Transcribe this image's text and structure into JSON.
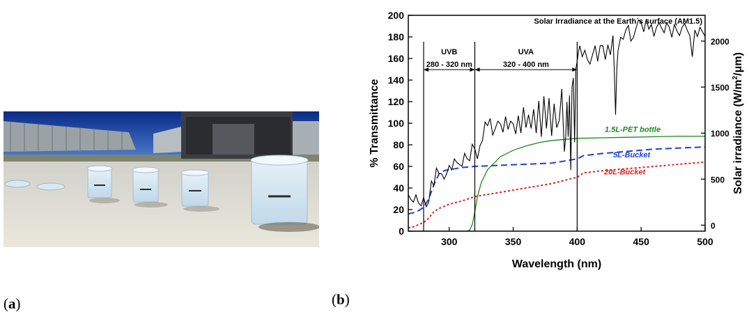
{
  "panels": {
    "a_label": "a",
    "b_label": "b"
  },
  "chart_data": {
    "type": "line",
    "title": "Solar Irradiance at the Earth´s surface (AM1.5)",
    "xlabel": "Wavelength (nm)",
    "ylabel": "% Transmittance",
    "y2label": "Solar irradiance (W/m²/μm)",
    "xlim": [
      268,
      500
    ],
    "ylim": [
      0,
      200
    ],
    "y2lim": [
      -65,
      2280
    ],
    "x_ticks": [
      300,
      350,
      400,
      450,
      500
    ],
    "y_ticks": [
      0,
      20,
      40,
      60,
      80,
      100,
      120,
      140,
      160,
      180,
      200
    ],
    "y2_ticks": [
      0,
      500,
      1000,
      1500,
      2000
    ],
    "grid": false,
    "vertical_lines": [
      280,
      320,
      400
    ],
    "band_labels": [
      {
        "name": "UVB",
        "range": "280 - 320 nm"
      },
      {
        "name": "UVA",
        "range": "320 - 400 nm"
      }
    ],
    "series": [
      {
        "name": "1.5L-PET bottle",
        "axis": "left",
        "color": "#1a8a1a",
        "dash": "solid",
        "x": [
          268,
          300,
          314,
          316,
          318,
          320,
          322,
          325,
          330,
          340,
          350,
          360,
          370,
          380,
          390,
          400,
          420,
          440,
          460,
          480,
          500
        ],
        "values": [
          0,
          0,
          0,
          1,
          6,
          18,
          32,
          45,
          57,
          69,
          75,
          79,
          82,
          84,
          85,
          86,
          86.5,
          87,
          87.5,
          88,
          88
        ]
      },
      {
        "name": "5L-Bucket",
        "axis": "left",
        "color": "#1f3fcf",
        "dash": "dashed",
        "x": [
          268,
          272,
          276,
          280,
          284,
          288,
          292,
          296,
          300,
          310,
          320,
          340,
          360,
          380,
          390,
          395,
          400,
          405,
          420,
          440,
          460,
          480,
          500
        ],
        "values": [
          16,
          17,
          19,
          22,
          30,
          43,
          53,
          56,
          57,
          59,
          60,
          61,
          62,
          63,
          65,
          66,
          67,
          70,
          72,
          74,
          76,
          77,
          78
        ]
      },
      {
        "name": "20L-Bucket",
        "axis": "left",
        "color": "#e02020",
        "dash": "dotted",
        "x": [
          268,
          272,
          276,
          280,
          284,
          288,
          292,
          296,
          300,
          310,
          320,
          340,
          360,
          380,
          390,
          400,
          405,
          420,
          440,
          460,
          480,
          500
        ],
        "values": [
          3,
          4,
          6,
          8,
          12,
          18,
          21,
          23,
          25,
          28,
          32,
          36,
          40,
          44,
          47,
          50,
          54,
          56,
          58,
          60,
          62,
          64
        ]
      },
      {
        "name": "Solar Irradiance at the Earth´s surface (AM1.5)",
        "axis": "right",
        "color": "#000000",
        "dash": "solid",
        "x": [
          268,
          270,
          272,
          274,
          276,
          278,
          280,
          282,
          284,
          286,
          288,
          290,
          292,
          294,
          296,
          298,
          300,
          302,
          304,
          306,
          308,
          310,
          312,
          314,
          316,
          318,
          320,
          322,
          324,
          326,
          328,
          330,
          332,
          334,
          336,
          338,
          340,
          342,
          344,
          346,
          348,
          350,
          352,
          354,
          356,
          358,
          360,
          362,
          364,
          366,
          368,
          370,
          372,
          374,
          376,
          378,
          380,
          382,
          384,
          386,
          388,
          390,
          391,
          392,
          393,
          394,
          395,
          396,
          397,
          398,
          399,
          400,
          401,
          402,
          404,
          406,
          408,
          410,
          412,
          414,
          416,
          418,
          420,
          422,
          424,
          426,
          428,
          429,
          430,
          431,
          432,
          434,
          436,
          438,
          440,
          442,
          444,
          446,
          448,
          450,
          452,
          454,
          456,
          458,
          460,
          462,
          464,
          466,
          468,
          470,
          472,
          474,
          476,
          478,
          480,
          482,
          484,
          486,
          488,
          490,
          492,
          494,
          496,
          498,
          500
        ],
        "values": [
          330,
          280,
          250,
          330,
          240,
          210,
          300,
          200,
          250,
          480,
          430,
          620,
          560,
          560,
          500,
          560,
          650,
          600,
          720,
          680,
          660,
          640,
          780,
          720,
          700,
          880,
          830,
          720,
          860,
          920,
          1120,
          1080,
          1160,
          980,
          1050,
          1130,
          1100,
          1010,
          1180,
          1040,
          1130,
          1100,
          990,
          1190,
          1000,
          1280,
          1060,
          1200,
          1050,
          1260,
          1000,
          1350,
          960,
          1400,
          1050,
          1380,
          970,
          1320,
          1060,
          1140,
          1480,
          800,
          950,
          1340,
          960,
          1410,
          600,
          1500,
          1600,
          900,
          1700,
          1780,
          1880,
          1950,
          1830,
          1900,
          1800,
          1750,
          1850,
          1950,
          1780,
          1950,
          1950,
          1800,
          1960,
          1850,
          2060,
          1700,
          1200,
          1700,
          1900,
          2040,
          2020,
          2120,
          2170,
          2000,
          2040,
          2140,
          2230,
          2200,
          2100,
          2240,
          2130,
          2180,
          2050,
          2150,
          2200,
          2140,
          2090,
          2200,
          2150,
          2040,
          2180,
          2110,
          2060,
          2150,
          2190,
          2120,
          2060,
          1830,
          2120,
          2050,
          2150,
          2100,
          2050
        ]
      }
    ]
  }
}
